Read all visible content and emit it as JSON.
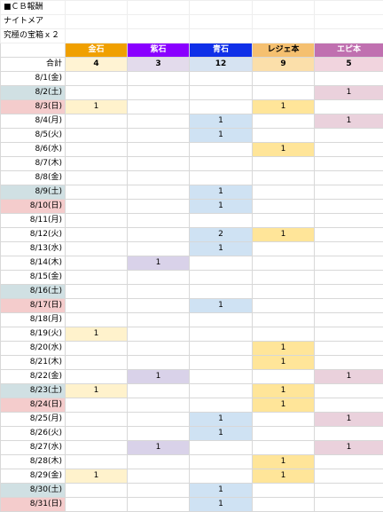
{
  "sheet": {
    "title_lines": [
      "■ＣＢ報酬",
      "ナイトメア",
      "究極の宝箱ｘ２"
    ],
    "total_label": "合計",
    "columns": [
      {
        "name": "金石",
        "total": "4"
      },
      {
        "name": "紫石",
        "total": "3"
      },
      {
        "name": "青石",
        "total": "12"
      },
      {
        "name": "レジェ本",
        "total": "9"
      },
      {
        "name": "エピ本",
        "total": "5"
      }
    ],
    "rows": [
      {
        "date": "8/1(金)",
        "vals": [
          "",
          "",
          "",
          "",
          ""
        ],
        "day": "weekday"
      },
      {
        "date": "8/2(土)",
        "vals": [
          "",
          "",
          "",
          "",
          "1"
        ],
        "day": "sat"
      },
      {
        "date": "8/3(日)",
        "vals": [
          "1",
          "",
          "",
          "1",
          ""
        ],
        "day": "sun"
      },
      {
        "date": "8/4(月)",
        "vals": [
          "",
          "",
          "1",
          "",
          "1"
        ],
        "day": "weekday"
      },
      {
        "date": "8/5(火)",
        "vals": [
          "",
          "",
          "1",
          "",
          ""
        ],
        "day": "weekday"
      },
      {
        "date": "8/6(水)",
        "vals": [
          "",
          "",
          "",
          "1",
          ""
        ],
        "day": "weekday"
      },
      {
        "date": "8/7(木)",
        "vals": [
          "",
          "",
          "",
          "",
          ""
        ],
        "day": "weekday"
      },
      {
        "date": "8/8(金)",
        "vals": [
          "",
          "",
          "",
          "",
          ""
        ],
        "day": "weekday"
      },
      {
        "date": "8/9(土)",
        "vals": [
          "",
          "",
          "1",
          "",
          ""
        ],
        "day": "sat"
      },
      {
        "date": "8/10(日)",
        "vals": [
          "",
          "",
          "1",
          "",
          ""
        ],
        "day": "sun"
      },
      {
        "date": "8/11(月)",
        "vals": [
          "",
          "",
          "",
          "",
          ""
        ],
        "day": "weekday"
      },
      {
        "date": "8/12(火)",
        "vals": [
          "",
          "",
          "2",
          "1",
          ""
        ],
        "day": "weekday"
      },
      {
        "date": "8/13(水)",
        "vals": [
          "",
          "",
          "1",
          "",
          ""
        ],
        "day": "weekday"
      },
      {
        "date": "8/14(木)",
        "vals": [
          "",
          "1",
          "",
          "",
          ""
        ],
        "day": "weekday"
      },
      {
        "date": "8/15(金)",
        "vals": [
          "",
          "",
          "",
          "",
          ""
        ],
        "day": "weekday"
      },
      {
        "date": "8/16(土)",
        "vals": [
          "",
          "",
          "",
          "",
          ""
        ],
        "day": "sat"
      },
      {
        "date": "8/17(日)",
        "vals": [
          "",
          "",
          "1",
          "",
          ""
        ],
        "day": "sun"
      },
      {
        "date": "8/18(月)",
        "vals": [
          "",
          "",
          "",
          "",
          ""
        ],
        "day": "weekday"
      },
      {
        "date": "8/19(火)",
        "vals": [
          "1",
          "",
          "",
          "",
          ""
        ],
        "day": "weekday"
      },
      {
        "date": "8/20(水)",
        "vals": [
          "",
          "",
          "",
          "1",
          ""
        ],
        "day": "weekday"
      },
      {
        "date": "8/21(木)",
        "vals": [
          "",
          "",
          "",
          "1",
          ""
        ],
        "day": "weekday"
      },
      {
        "date": "8/22(金)",
        "vals": [
          "",
          "1",
          "",
          "",
          "1"
        ],
        "day": "weekday"
      },
      {
        "date": "8/23(土)",
        "vals": [
          "1",
          "",
          "",
          "1",
          ""
        ],
        "day": "sat"
      },
      {
        "date": "8/24(日)",
        "vals": [
          "",
          "",
          "",
          "1",
          ""
        ],
        "day": "sun"
      },
      {
        "date": "8/25(月)",
        "vals": [
          "",
          "",
          "1",
          "",
          "1"
        ],
        "day": "weekday"
      },
      {
        "date": "8/26(火)",
        "vals": [
          "",
          "",
          "1",
          "",
          ""
        ],
        "day": "weekday"
      },
      {
        "date": "8/27(水)",
        "vals": [
          "",
          "1",
          "",
          "",
          "1"
        ],
        "day": "weekday"
      },
      {
        "date": "8/28(木)",
        "vals": [
          "",
          "",
          "",
          "1",
          ""
        ],
        "day": "weekday"
      },
      {
        "date": "8/29(金)",
        "vals": [
          "1",
          "",
          "",
          "1",
          ""
        ],
        "day": "weekday"
      },
      {
        "date": "8/30(土)",
        "vals": [
          "",
          "",
          "1",
          "",
          ""
        ],
        "day": "sat"
      },
      {
        "date": "8/31(日)",
        "vals": [
          "",
          "",
          "1",
          "",
          ""
        ],
        "day": "sun"
      }
    ]
  }
}
